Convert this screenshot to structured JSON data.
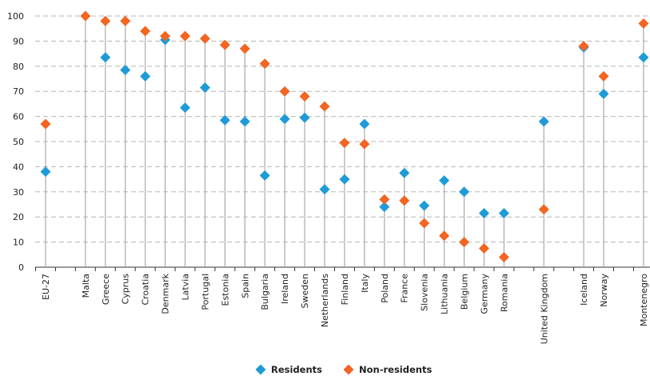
{
  "chart_data": {
    "type": "dot",
    "categories": [
      "EU-27",
      null,
      "Malta",
      "Greece",
      "Cyprus",
      "Croatia",
      "Denmark",
      "Latvia",
      "Portugal",
      "Estonia",
      "Spain",
      "Bulgaria",
      "Ireland",
      "Sweden",
      "Netherlands",
      "Finland",
      "Italy",
      "Poland",
      "France",
      "Slovenia",
      "Lithuania",
      "Belgium",
      "Germany",
      "Romania",
      null,
      "United Kingdom",
      null,
      "Iceland",
      "Norway",
      null,
      "Montenegro"
    ],
    "series": [
      {
        "name": "Residents",
        "color": "#1f9bd7",
        "values": [
          38,
          null,
          null,
          83.5,
          78.5,
          76,
          90.5,
          63.5,
          71.5,
          58.5,
          58,
          36.5,
          59,
          59.5,
          31,
          35,
          57,
          24,
          37.5,
          24.5,
          34.5,
          30,
          21.5,
          21.5,
          null,
          58,
          null,
          87.5,
          69,
          null,
          83.5
        ]
      },
      {
        "name": "Non-residents",
        "color": "#f26522",
        "values": [
          57,
          null,
          100,
          98,
          98,
          94,
          92,
          92,
          91,
          88.5,
          87,
          81,
          70,
          68,
          64,
          49.5,
          49,
          27,
          26.5,
          17.5,
          12.5,
          10,
          7.5,
          4,
          null,
          23,
          null,
          88,
          76,
          null,
          97
        ]
      }
    ],
    "ylim": [
      0,
      100
    ],
    "yticks": [
      0,
      10,
      20,
      30,
      40,
      50,
      60,
      70,
      80,
      90,
      100
    ],
    "grid": true,
    "legend": "bottom"
  }
}
